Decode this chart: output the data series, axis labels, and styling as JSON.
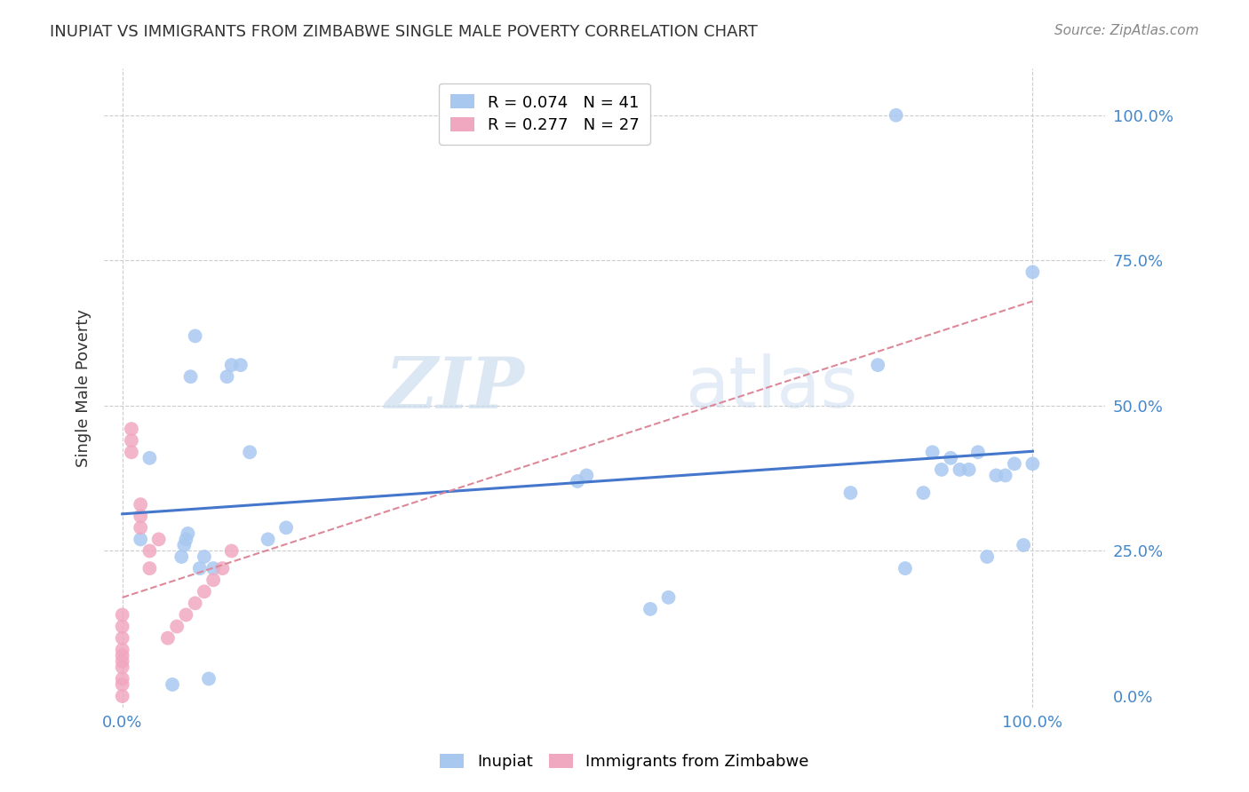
{
  "title": "INUPIAT VS IMMIGRANTS FROM ZIMBABWE SINGLE MALE POVERTY CORRELATION CHART",
  "source": "Source: ZipAtlas.com",
  "ylabel": "Single Male Poverty",
  "inupiat_x": [
    0.02,
    0.03,
    0.055,
    0.065,
    0.068,
    0.07,
    0.072,
    0.075,
    0.08,
    0.085,
    0.09,
    0.095,
    0.1,
    0.115,
    0.12,
    0.13,
    0.14,
    0.16,
    0.18,
    0.5,
    0.51,
    0.58,
    0.6,
    0.8,
    0.83,
    0.86,
    0.88,
    0.89,
    0.9,
    0.91,
    0.92,
    0.93,
    0.94,
    0.95,
    0.96,
    0.97,
    0.98,
    0.99,
    1.0,
    0.85,
    1.0
  ],
  "inupiat_y": [
    0.27,
    0.41,
    0.02,
    0.24,
    0.26,
    0.27,
    0.28,
    0.55,
    0.62,
    0.22,
    0.24,
    0.03,
    0.22,
    0.55,
    0.57,
    0.57,
    0.42,
    0.27,
    0.29,
    0.37,
    0.38,
    0.15,
    0.17,
    0.35,
    0.57,
    0.22,
    0.35,
    0.42,
    0.39,
    0.41,
    0.39,
    0.39,
    0.42,
    0.24,
    0.38,
    0.38,
    0.4,
    0.26,
    0.4,
    1.0,
    0.73
  ],
  "zimbabwe_x": [
    0.0,
    0.0,
    0.0,
    0.0,
    0.0,
    0.0,
    0.0,
    0.0,
    0.0,
    0.0,
    0.01,
    0.01,
    0.01,
    0.02,
    0.02,
    0.02,
    0.03,
    0.03,
    0.04,
    0.05,
    0.06,
    0.07,
    0.08,
    0.09,
    0.1,
    0.11,
    0.12
  ],
  "zimbabwe_y": [
    0.0,
    0.02,
    0.03,
    0.05,
    0.06,
    0.07,
    0.08,
    0.1,
    0.12,
    0.14,
    0.42,
    0.44,
    0.46,
    0.29,
    0.31,
    0.33,
    0.22,
    0.25,
    0.27,
    0.1,
    0.12,
    0.14,
    0.16,
    0.18,
    0.2,
    0.22,
    0.25
  ],
  "inupiat_color": "#a8c8f0",
  "zimbabwe_color": "#f0a8c0",
  "inupiat_line_color": "#4477cc",
  "zimbabwe_line_color": "#dd8899",
  "watermark_zip": "ZIP",
  "watermark_atlas": "atlas",
  "background_color": "#ffffff",
  "grid_color": "#cccccc",
  "tick_color": "#4488cc",
  "title_color": "#333333",
  "source_color": "#888888",
  "ylabel_color": "#333333",
  "legend_r1": "R = 0.074   N = 41",
  "legend_r2": "R = 0.277   N = 27",
  "legend_label1": "Inupiat",
  "legend_label2": "Immigrants from Zimbabwe",
  "xlim": [
    -0.02,
    1.08
  ],
  "ylim": [
    -0.02,
    1.08
  ],
  "xticks": [
    0.0,
    1.0
  ],
  "yticks": [
    0.0,
    0.25,
    0.5,
    0.75,
    1.0
  ],
  "xticklabels": [
    "0.0%",
    "100.0%"
  ],
  "yticklabels": [
    "0.0%",
    "25.0%",
    "50.0%",
    "75.0%",
    "100.0%"
  ]
}
